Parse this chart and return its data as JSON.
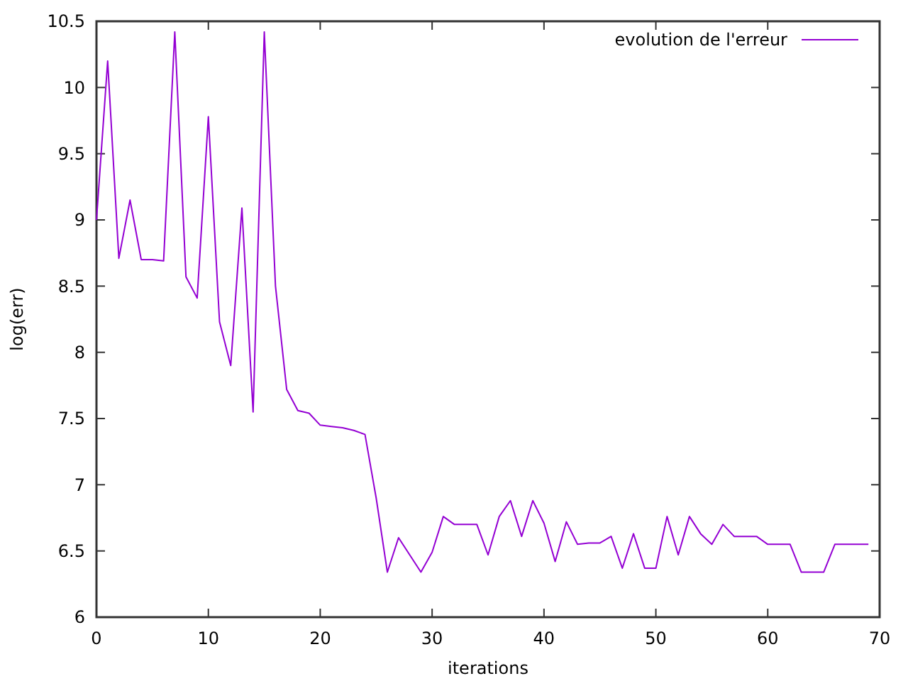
{
  "chart_data": {
    "type": "line",
    "xlabel": "iterations",
    "ylabel": "log(err)",
    "xlim": [
      0,
      70
    ],
    "ylim": [
      6,
      10.5
    ],
    "xticks": [
      0,
      10,
      20,
      30,
      40,
      50,
      60,
      70
    ],
    "yticks": [
      6,
      6.5,
      7,
      7.5,
      8,
      8.5,
      9,
      9.5,
      10,
      10.5
    ],
    "legend": "top right",
    "grid": false,
    "marker": "none",
    "line_style": "solid",
    "x": [
      0,
      1,
      2,
      3,
      4,
      5,
      6,
      7,
      8,
      9,
      10,
      11,
      12,
      13,
      14,
      15,
      16,
      17,
      18,
      19,
      20,
      21,
      22,
      23,
      24,
      25,
      26,
      27,
      28,
      29,
      30,
      31,
      32,
      33,
      34,
      35,
      36,
      37,
      38,
      39,
      40,
      41,
      42,
      43,
      44,
      45,
      46,
      47,
      48,
      49,
      50,
      51,
      52,
      53,
      54,
      55,
      56,
      57,
      58,
      59,
      60,
      61,
      62,
      63,
      64,
      65,
      66,
      67,
      68,
      69
    ],
    "series": [
      {
        "name": "evolution de l'erreur",
        "color": "#9400d3",
        "values": [
          9.0,
          10.2,
          8.71,
          9.15,
          8.7,
          8.7,
          8.69,
          10.42,
          8.57,
          8.41,
          9.78,
          8.23,
          7.9,
          9.09,
          7.55,
          10.42,
          8.5,
          7.72,
          7.56,
          7.54,
          7.45,
          7.44,
          7.43,
          7.41,
          7.38,
          6.9,
          6.34,
          6.6,
          6.47,
          6.34,
          6.49,
          6.76,
          6.7,
          6.7,
          6.7,
          6.47,
          6.76,
          6.88,
          6.61,
          6.88,
          6.71,
          6.42,
          6.72,
          6.55,
          6.56,
          6.56,
          6.61,
          6.37,
          6.63,
          6.37,
          6.37,
          6.76,
          6.47,
          6.76,
          6.63,
          6.55,
          6.7,
          6.61,
          6.61,
          6.61,
          6.55,
          6.55,
          6.55,
          6.34,
          6.34,
          6.34,
          6.55,
          6.55,
          6.55,
          6.55
        ]
      }
    ]
  }
}
